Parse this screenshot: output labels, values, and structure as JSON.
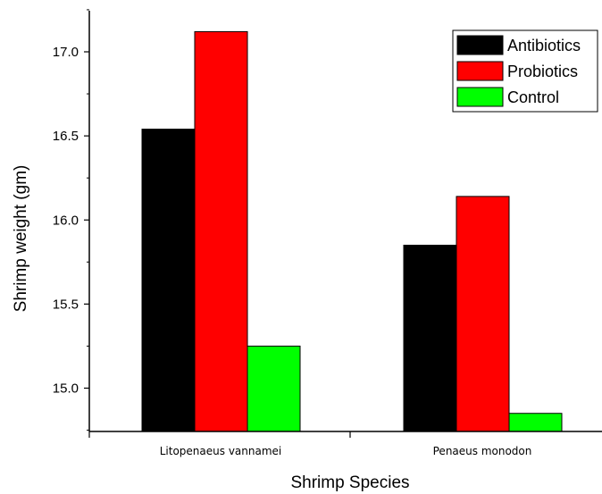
{
  "chart_data": {
    "type": "bar",
    "categories": [
      "Litopenaeus vannamei",
      "Penaeus monodon"
    ],
    "series": [
      {
        "name": "Antibiotics",
        "color": "#000000",
        "values": [
          16.54,
          15.85
        ]
      },
      {
        "name": "Probiotics",
        "color": "#ff0000",
        "values": [
          17.12,
          16.14
        ]
      },
      {
        "name": "Control",
        "color": "#00ff00",
        "values": [
          15.25,
          14.85
        ]
      }
    ],
    "title": "",
    "xlabel": "Shrimp Species",
    "ylabel": "Shrimp weight (gm)",
    "ylim": [
      14.8,
      17.35
    ],
    "yticks": [
      "15.0",
      "15.5",
      "16.0",
      "16.5",
      "17.0"
    ],
    "grid": false,
    "legend_position": "top-right"
  }
}
